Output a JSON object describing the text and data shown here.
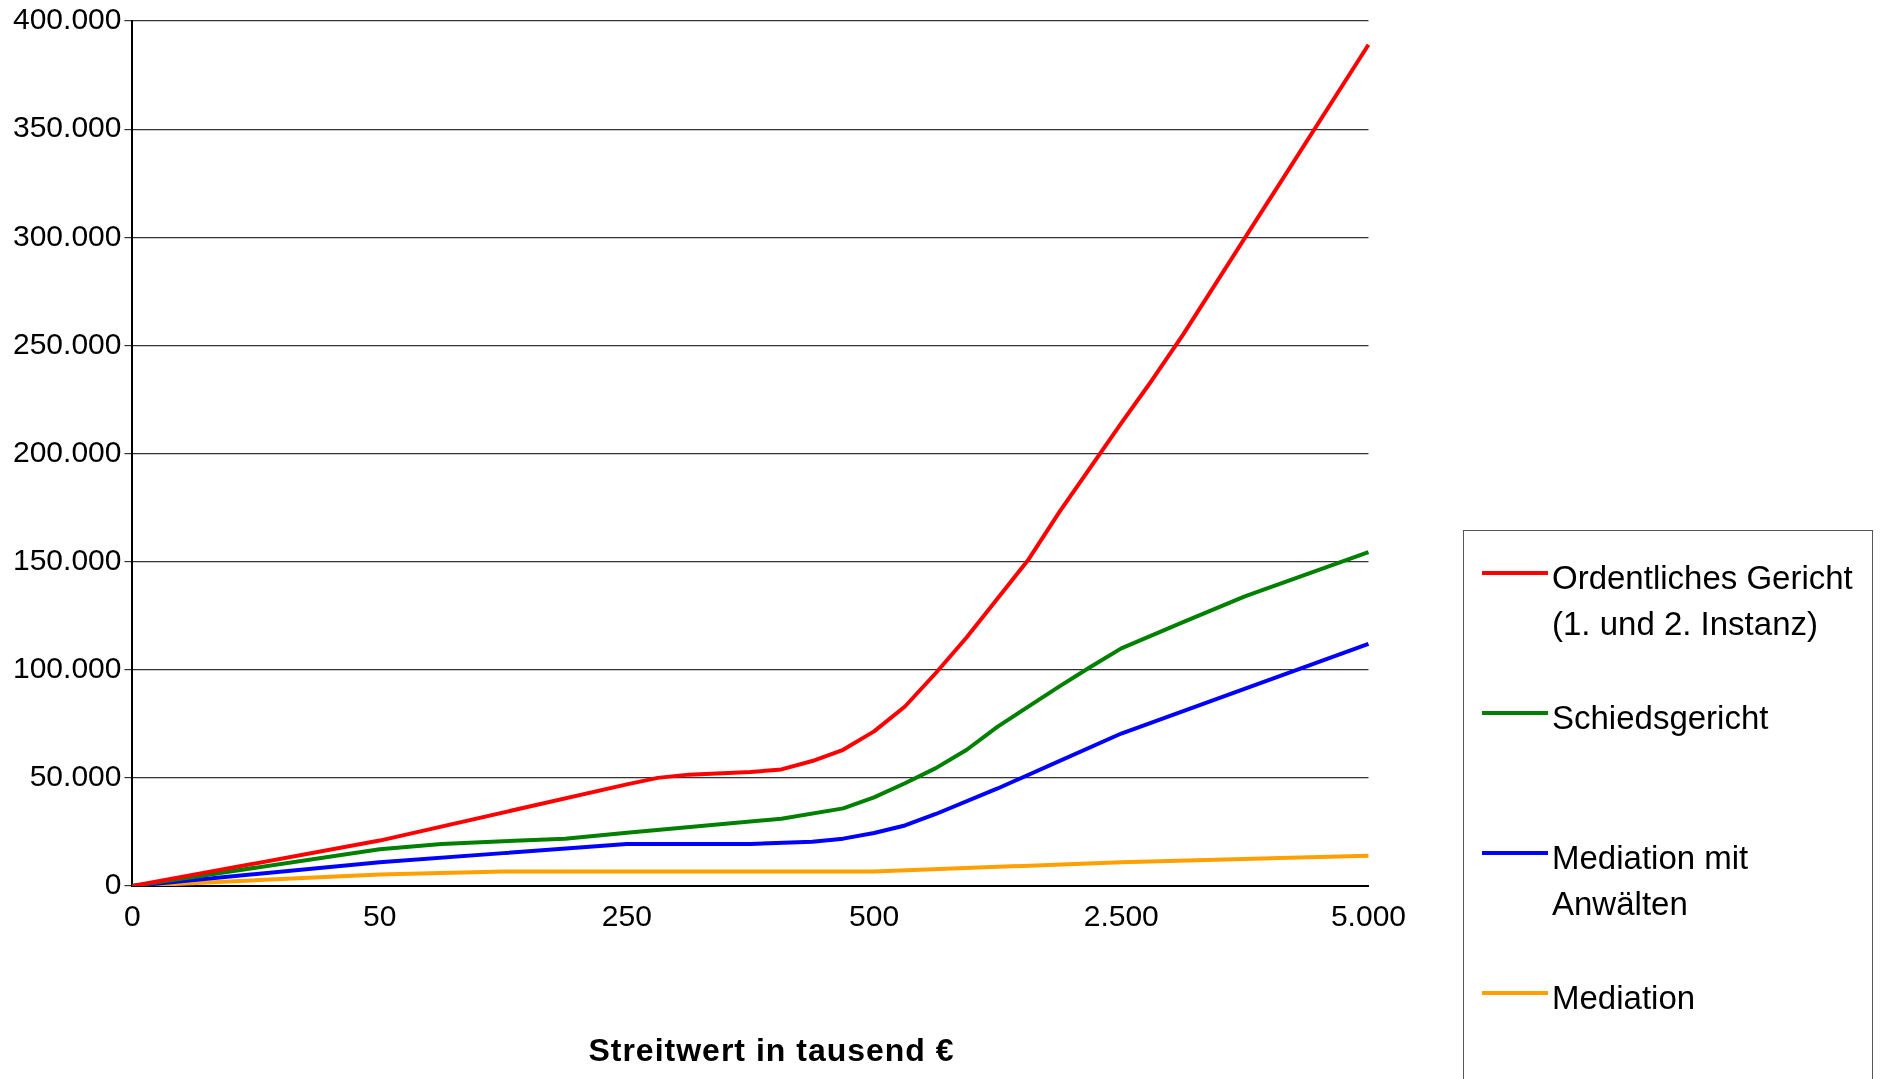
{
  "chart_data": {
    "type": "line",
    "xlabel": "Streitwert in tausend €",
    "categories": [
      "0",
      null,
      null,
      null,
      null,
      null,
      null,
      null,
      "50",
      null,
      null,
      null,
      null,
      null,
      null,
      null,
      "250",
      null,
      null,
      null,
      null,
      null,
      null,
      null,
      "500",
      null,
      null,
      null,
      null,
      null,
      null,
      null,
      "2.500",
      null,
      null,
      null,
      null,
      null,
      null,
      null,
      "5.000"
    ],
    "ylim": [
      0,
      400000
    ],
    "yticks": [
      {
        "value": 0,
        "label": "0"
      },
      {
        "value": 50000,
        "label": "50.000"
      },
      {
        "value": 100000,
        "label": "100.000"
      },
      {
        "value": 150000,
        "label": "150.000"
      },
      {
        "value": 200000,
        "label": "200.000"
      },
      {
        "value": 250000,
        "label": "250.000"
      },
      {
        "value": 300000,
        "label": "300.000"
      },
      {
        "value": 350000,
        "label": "350.000"
      },
      {
        "value": 400000,
        "label": "400.000"
      }
    ],
    "grid": "y",
    "legend": "right",
    "marker": "none",
    "line_style": "solid",
    "series": [
      {
        "name": "Ordentliches Gericht (1. und 2. Instanz)",
        "color": "#ff0000",
        "values": [
          0,
          null,
          null,
          null,
          null,
          null,
          null,
          null,
          21000,
          null,
          null,
          null,
          null,
          null,
          null,
          null,
          47000,
          50000,
          51500,
          null,
          52700,
          53900,
          57800,
          63000,
          71500,
          83000,
          98500,
          115000,
          null,
          151000,
          173000,
          null,
          214000,
          234000,
          255000,
          null,
          null,
          null,
          null,
          null,
          389000
        ]
      },
      {
        "name": "Schiedsgericht",
        "color": "#008000",
        "values": [
          0,
          null,
          null,
          null,
          null,
          null,
          null,
          null,
          17000,
          null,
          19400,
          null,
          20700,
          null,
          21900,
          null,
          24600,
          null,
          null,
          null,
          null,
          31100,
          null,
          35900,
          41000,
          47500,
          54500,
          63000,
          73700,
          null,
          92300,
          101300,
          109900,
          null,
          122000,
          null,
          133900,
          null,
          null,
          null,
          154400
        ]
      },
      {
        "name": "Mediation mit Anwälten",
        "color": "#0000ff",
        "values": [
          0,
          null,
          null,
          null,
          null,
          null,
          null,
          null,
          11000,
          null,
          null,
          null,
          15200,
          null,
          null,
          null,
          19400,
          null,
          null,
          null,
          19400,
          null,
          20500,
          21900,
          24500,
          28000,
          33300,
          null,
          45100,
          null,
          null,
          null,
          70500,
          null,
          null,
          null,
          null,
          null,
          null,
          null,
          112000
        ]
      },
      {
        "name": "Mediation",
        "color": "#ffa000",
        "values": [
          0,
          null,
          null,
          null,
          null,
          null,
          null,
          null,
          5300,
          null,
          null,
          null,
          6700,
          null,
          null,
          null,
          null,
          null,
          null,
          null,
          null,
          null,
          null,
          null,
          6700,
          null,
          null,
          null,
          null,
          null,
          null,
          null,
          11000,
          null,
          null,
          null,
          null,
          null,
          null,
          null,
          14000
        ]
      }
    ]
  }
}
